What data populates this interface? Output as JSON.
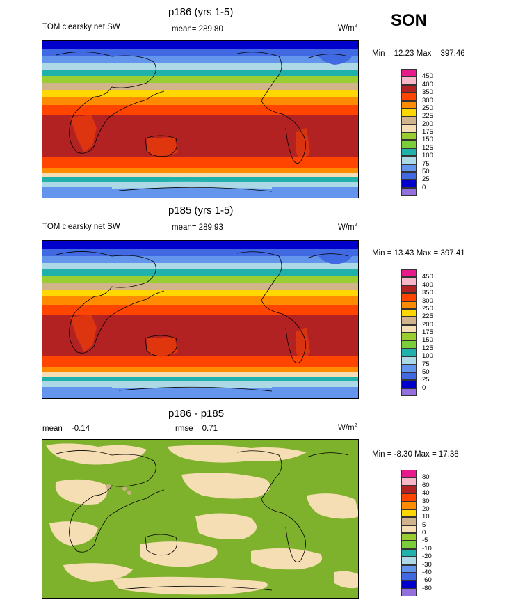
{
  "season": "SON",
  "panels": [
    {
      "title": "p186 (yrs 1-5)",
      "left_label": "TOM clearsky net SW",
      "center_label": "mean= 289.80",
      "units": "W/m",
      "units_sup": "2",
      "minmax": "Min =  12.23 Max = 397.46"
    },
    {
      "title": "p185 (yrs 1-5)",
      "left_label": "TOM clearsky net SW",
      "center_label": "mean= 289.93",
      "units": "W/m",
      "units_sup": "2",
      "minmax": "Min =  13.43 Max = 397.41"
    },
    {
      "title": "p186 - p185",
      "left_label": "mean =  -0.14",
      "center_label": "rmse =   0.71",
      "units": "W/m",
      "units_sup": "2",
      "minmax": "Min =  -8.30 Max =  17.38"
    }
  ],
  "legend_abs": {
    "labels": [
      "450",
      "400",
      "350",
      "300",
      "250",
      "225",
      "200",
      "175",
      "150",
      "125",
      "100",
      "75",
      "50",
      "25",
      "0"
    ],
    "colors": [
      "#e8198a",
      "#f7b7c8",
      "#b22222",
      "#ff4500",
      "#ff8c00",
      "#ffd700",
      "#d2b48c",
      "#f5deb3",
      "#9acd32",
      "#7ccd3c",
      "#20b2aa",
      "#add8e6",
      "#6495ed",
      "#4169e1",
      "#0000cd",
      "#9370db"
    ]
  },
  "legend_diff": {
    "labels": [
      "80",
      "60",
      "40",
      "30",
      "20",
      "10",
      "5",
      "0",
      "-5",
      "-10",
      "-20",
      "-30",
      "-40",
      "-60",
      "-80"
    ],
    "colors": [
      "#e8198a",
      "#f7b7c8",
      "#b22222",
      "#ff4500",
      "#ff8c00",
      "#ffd700",
      "#d2b48c",
      "#f5deb3",
      "#9acd32",
      "#7ccd3c",
      "#20b2aa",
      "#add8e6",
      "#6495ed",
      "#4169e1",
      "#0000cd",
      "#9370db"
    ]
  }
}
